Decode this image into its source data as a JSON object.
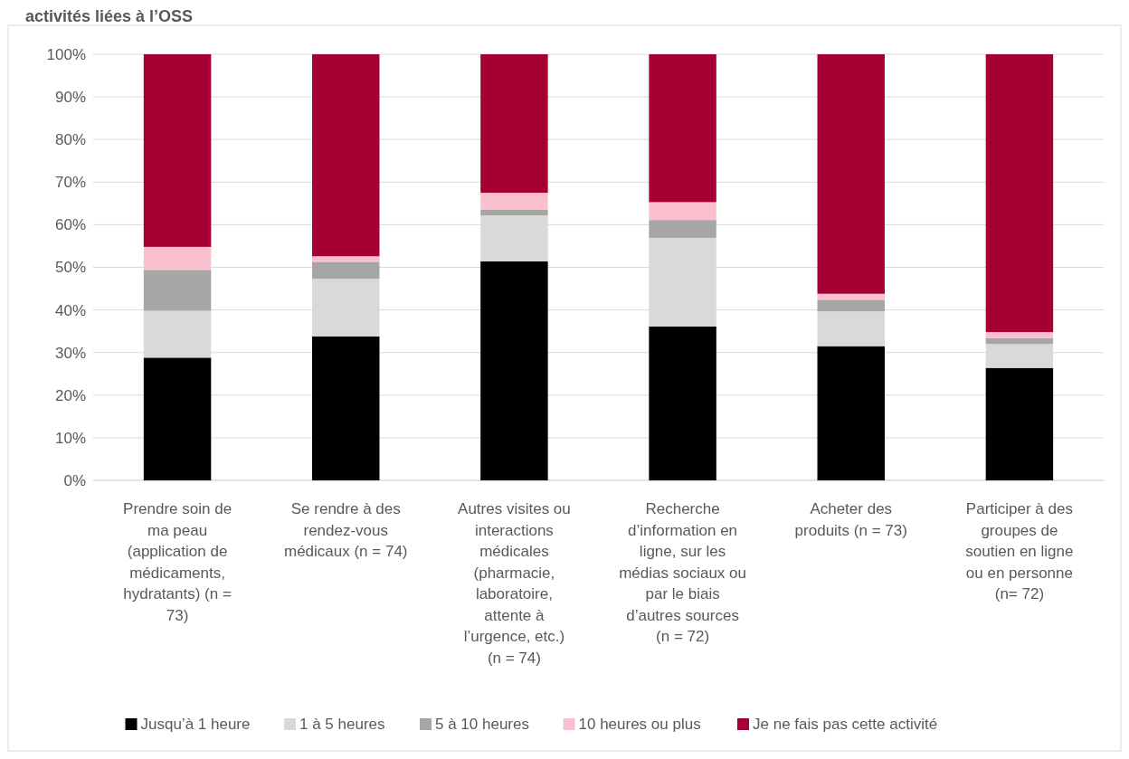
{
  "chart_data": {
    "type": "bar",
    "stacked": true,
    "title": "activités liées à l’OSS",
    "categories": [
      "Prendre soin de ma peau (application de médicaments, hydratants) (n = 73)",
      "Se rendre à des rendez-vous médicaux (n = 74)",
      "Autres visites ou interactions médicales (pharmacie, laboratoire, attente à l’urgence, etc.) (n = 74)",
      "Recherche d’information en ligne, sur les médias sociaux ou par le biais d’autres sources (n = 72)",
      "Acheter des produits (n = 73)",
      "Participer à des groupes de soutien en ligne ou en personne (n= 72)"
    ],
    "series": [
      {
        "name": "Jusqu’à 1 heure",
        "color": "#000000",
        "values": [
          28.8,
          33.8,
          51.4,
          36.1,
          31.5,
          26.4
        ]
      },
      {
        "name": "1 à 5 heures",
        "color": "#d9d9d9",
        "values": [
          11.0,
          13.5,
          10.8,
          20.8,
          8.2,
          5.6
        ]
      },
      {
        "name": "5 à 10 heures",
        "color": "#a6a6a6",
        "values": [
          9.6,
          4.0,
          1.3,
          4.2,
          2.7,
          1.4
        ]
      },
      {
        "name": "10 heures ou plus",
        "color": "#fbc0cd",
        "values": [
          5.4,
          1.3,
          4.0,
          4.2,
          1.4,
          1.4
        ]
      },
      {
        "name": "Je ne fais pas cette activité",
        "color": "#a50034",
        "values": [
          45.2,
          47.4,
          32.5,
          34.7,
          56.2,
          65.2
        ]
      }
    ],
    "ylim": [
      0,
      100
    ],
    "yticks": [
      {
        "value": 0,
        "label": "0%"
      },
      {
        "value": 10,
        "label": "10%"
      },
      {
        "value": 20,
        "label": "20%"
      },
      {
        "value": 30,
        "label": "30%"
      },
      {
        "value": 40,
        "label": "40%"
      },
      {
        "value": 50,
        "label": "50%"
      },
      {
        "value": 60,
        "label": "60%"
      },
      {
        "value": 70,
        "label": "70%"
      },
      {
        "value": 80,
        "label": "80%"
      },
      {
        "value": 90,
        "label": "90%"
      },
      {
        "value": 100,
        "label": "100%"
      }
    ],
    "grid": "y",
    "legend": "bottom"
  }
}
